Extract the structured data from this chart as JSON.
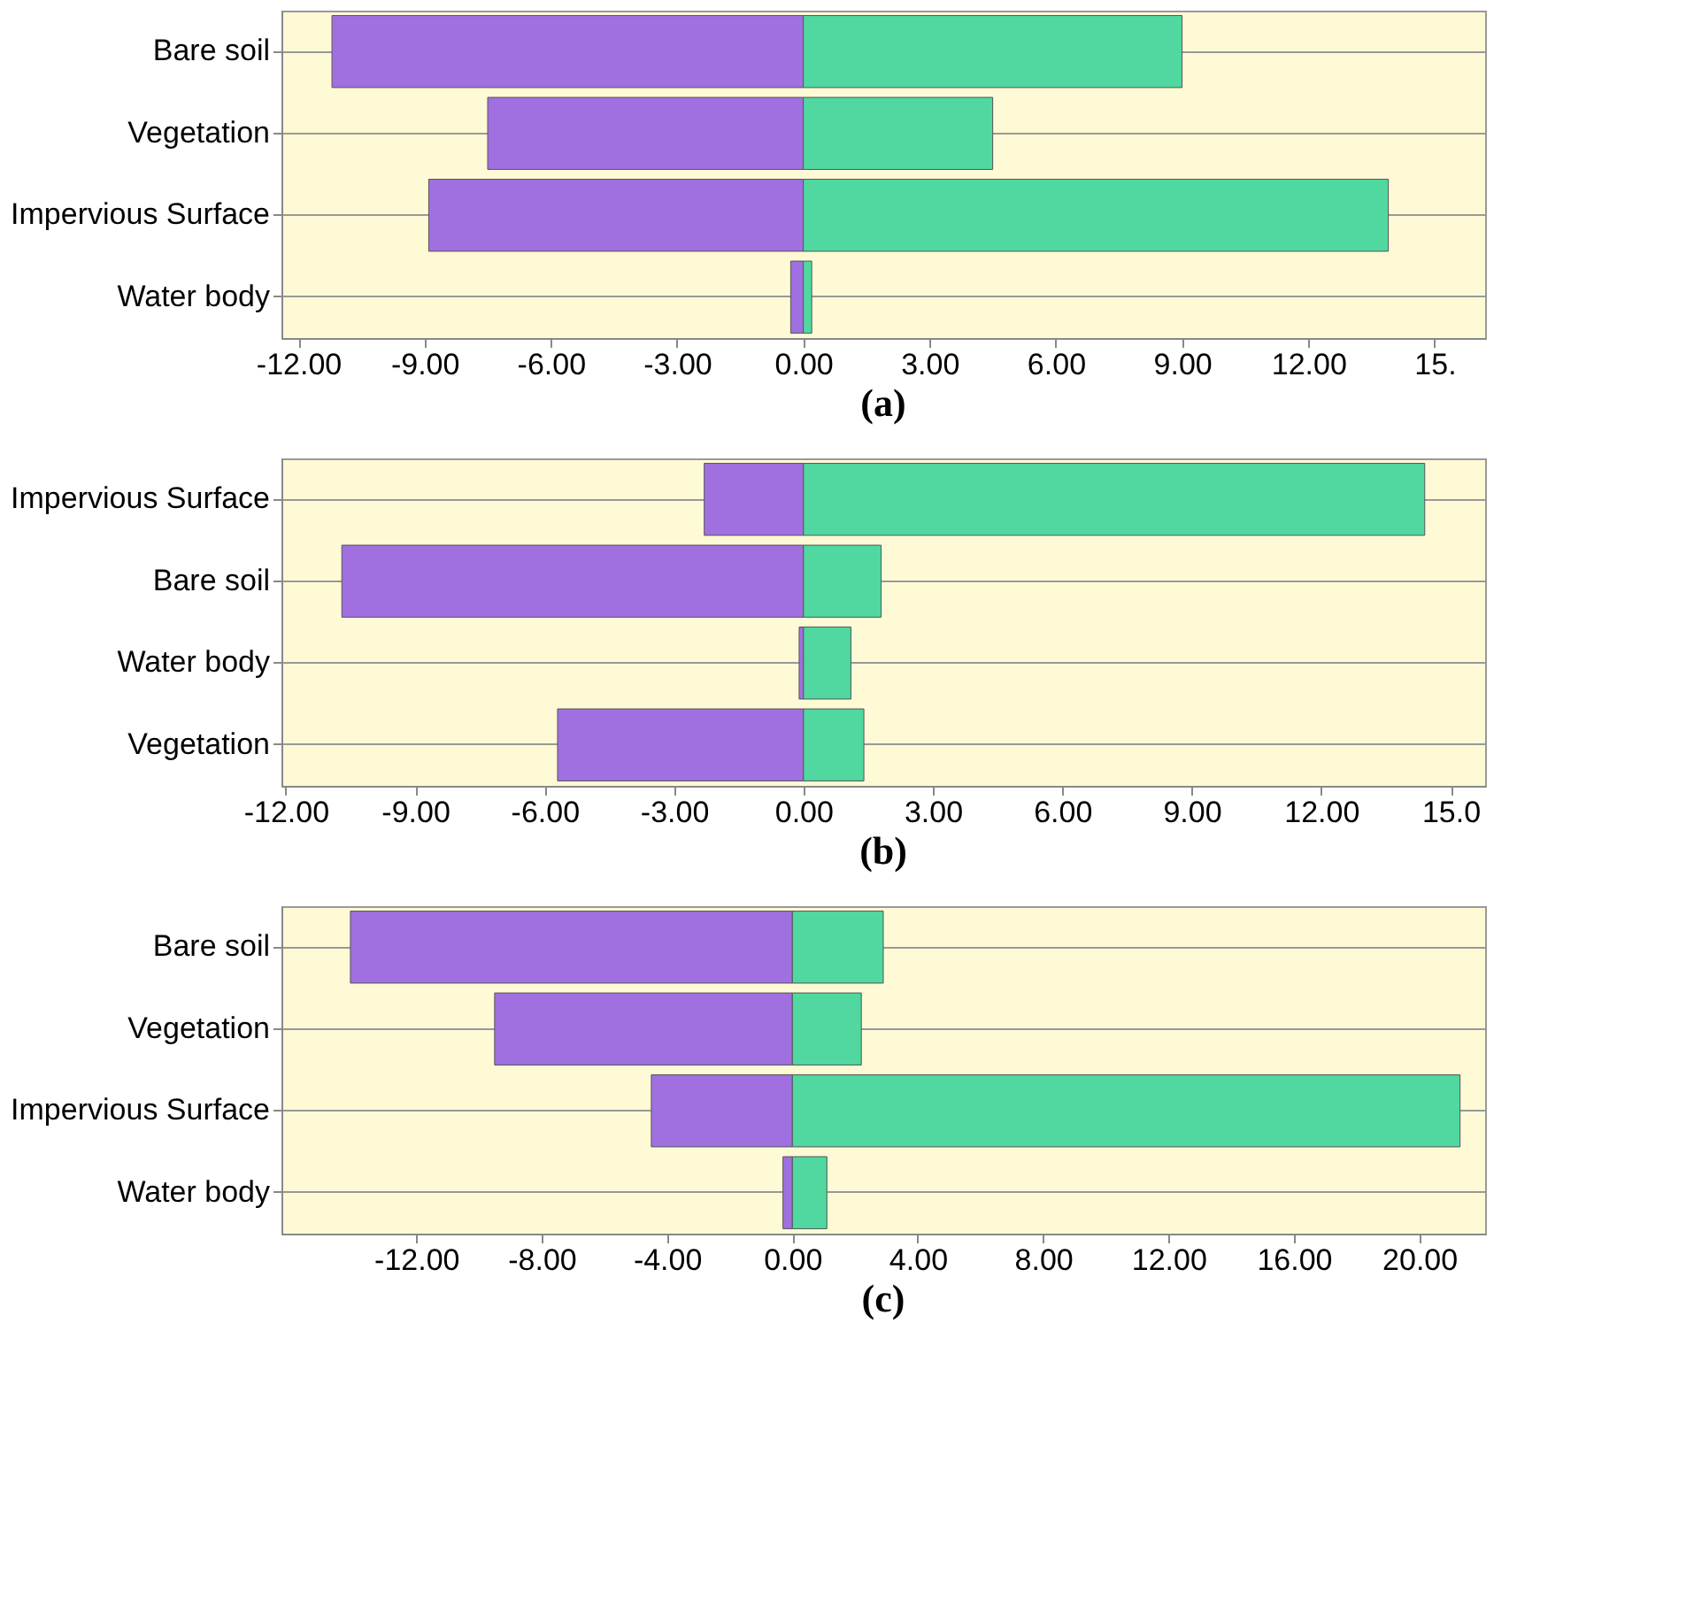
{
  "chart_data": [
    {
      "type": "bar",
      "orientation": "horizontal",
      "title": "(a)",
      "categories": [
        "Bare soil",
        "Vegetation",
        "Impervious Surface",
        "Water body"
      ],
      "series": [
        {
          "color": "#a070e0",
          "values": [
            -11.2,
            -7.5,
            -8.9,
            -0.3
          ]
        },
        {
          "color": "#50d8a0",
          "values": [
            9.0,
            4.5,
            13.9,
            0.2
          ]
        }
      ],
      "xlim": [
        -12.4,
        16.2
      ],
      "xticks": [
        {
          "value": -12,
          "label": "-12.00"
        },
        {
          "value": -9,
          "label": "-9.00"
        },
        {
          "value": -6,
          "label": "-6.00"
        },
        {
          "value": -3,
          "label": "-3.00"
        },
        {
          "value": 0,
          "label": "0.00"
        },
        {
          "value": 3,
          "label": "3.00"
        },
        {
          "value": 6,
          "label": "6.00"
        },
        {
          "value": 9,
          "label": "9.00"
        },
        {
          "value": 12,
          "label": "12.00"
        },
        {
          "value": 15,
          "label": "15."
        }
      ],
      "grid": "y",
      "stacked": true
    },
    {
      "type": "bar",
      "orientation": "horizontal",
      "title": "(b)",
      "categories": [
        "Impervious Surface",
        "Bare soil",
        "Water body",
        "Vegetation"
      ],
      "series": [
        {
          "color": "#a070e0",
          "values": [
            -2.3,
            -10.7,
            -0.1,
            -5.7
          ]
        },
        {
          "color": "#50d8a0",
          "values": [
            14.4,
            1.8,
            1.1,
            1.4
          ]
        }
      ],
      "xlim": [
        -12.1,
        15.8
      ],
      "xticks": [
        {
          "value": -12,
          "label": "-12.00"
        },
        {
          "value": -9,
          "label": "-9.00"
        },
        {
          "value": -6,
          "label": "-6.00"
        },
        {
          "value": -3,
          "label": "-3.00"
        },
        {
          "value": 0,
          "label": "0.00"
        },
        {
          "value": 3,
          "label": "3.00"
        },
        {
          "value": 6,
          "label": "6.00"
        },
        {
          "value": 9,
          "label": "9.00"
        },
        {
          "value": 12,
          "label": "12.00"
        },
        {
          "value": 15,
          "label": "15.0"
        }
      ],
      "grid": "y",
      "stacked": true
    },
    {
      "type": "bar",
      "orientation": "horizontal",
      "title": "(c)",
      "categories": [
        "Bare soil",
        "Vegetation",
        "Impervious Surface",
        "Water body"
      ],
      "series": [
        {
          "color": "#a070e0",
          "values": [
            -14.1,
            -9.5,
            -4.5,
            -0.3
          ]
        },
        {
          "color": "#50d8a0",
          "values": [
            2.9,
            2.2,
            21.3,
            1.1
          ]
        }
      ],
      "xlim": [
        -16.3,
        22.1
      ],
      "xticks": [
        {
          "value": -12,
          "label": "-12.00"
        },
        {
          "value": -8,
          "label": "-8.00"
        },
        {
          "value": -4,
          "label": "-4.00"
        },
        {
          "value": 0,
          "label": "0.00"
        },
        {
          "value": 4,
          "label": "4.00"
        },
        {
          "value": 8,
          "label": "8.00"
        },
        {
          "value": 12,
          "label": "12.00"
        },
        {
          "value": 16,
          "label": "16.00"
        },
        {
          "value": 20,
          "label": "20.00"
        }
      ],
      "grid": "y",
      "stacked": true
    }
  ]
}
